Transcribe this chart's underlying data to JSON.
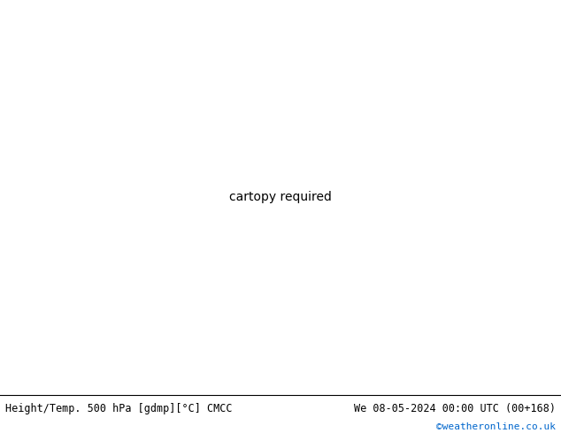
{
  "title_left": "Height/Temp. 500 hPa [gdmp][°C] CMCC",
  "title_right": "We 08-05-2024 00:00 UTC (00+168)",
  "credit": "©weatheronline.co.uk",
  "fig_width": 6.34,
  "fig_height": 4.9,
  "dpi": 100,
  "credit_color": "#0066cc",
  "sea_color": "#b8e6b8",
  "land_color": "#c8c8c8",
  "border_color": "#888888",
  "map_bg": "#d0d0d0"
}
